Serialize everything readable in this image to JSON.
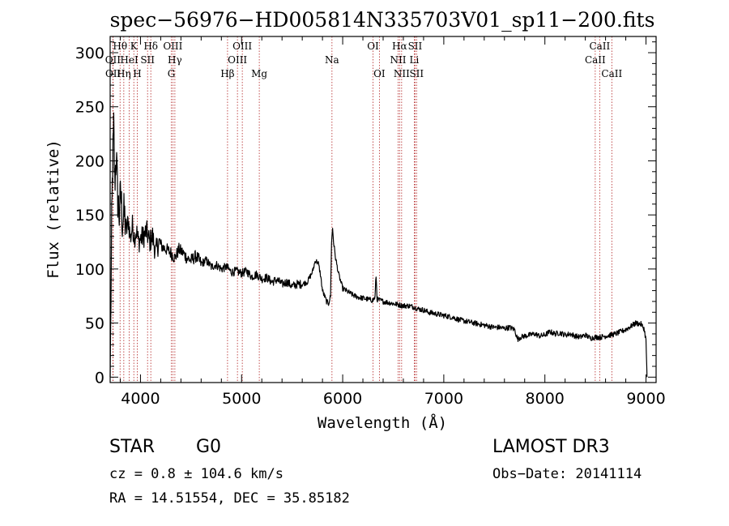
{
  "chart_data": {
    "type": "line",
    "title": "spec−56976−HD005814N335703V01_sp11−200.fits",
    "xlabel": "Wavelength (Å)",
    "ylabel": "Flux (relative)",
    "xlim": [
      3700,
      9100
    ],
    "ylim": [
      -5,
      315
    ],
    "x_ticks": [
      4000,
      5000,
      6000,
      7000,
      8000,
      9000
    ],
    "x_tick_labels": [
      "4000",
      "5000",
      "6000",
      "7000",
      "8000",
      "9000"
    ],
    "y_ticks": [
      0,
      50,
      100,
      150,
      200,
      250,
      300
    ],
    "y_tick_labels": [
      "0",
      "50",
      "100",
      "150",
      "200",
      "250",
      "300"
    ],
    "series": [
      {
        "name": "flux",
        "x": [
          3700,
          3705,
          3715,
          3725,
          3735,
          3745,
          3760,
          3775,
          3790,
          3805,
          3820,
          3840,
          3860,
          3880,
          3900,
          3920,
          3940,
          3960,
          3980,
          4000,
          4030,
          4060,
          4090,
          4120,
          4150,
          4180,
          4220,
          4260,
          4300,
          4340,
          4380,
          4420,
          4460,
          4500,
          4550,
          4600,
          4650,
          4700,
          4750,
          4800,
          4850,
          4900,
          4950,
          5000,
          5050,
          5100,
          5150,
          5200,
          5250,
          5300,
          5350,
          5400,
          5450,
          5500,
          5550,
          5600,
          5650,
          5700,
          5730,
          5760,
          5780,
          5800,
          5820,
          5840,
          5860,
          5880,
          5890,
          5900,
          5910,
          5930,
          5960,
          6000,
          6050,
          6100,
          6150,
          6200,
          6250,
          6300,
          6320,
          6330,
          6340,
          6400,
          6450,
          6500,
          6550,
          6600,
          6650,
          6700,
          6750,
          6800,
          6850,
          6900,
          6950,
          7000,
          7050,
          7100,
          7150,
          7200,
          7250,
          7300,
          7350,
          7400,
          7450,
          7500,
          7550,
          7600,
          7650,
          7700,
          7730,
          7760,
          7800,
          7850,
          7900,
          7950,
          8000,
          8050,
          8100,
          8150,
          8200,
          8250,
          8300,
          8350,
          8400,
          8450,
          8500,
          8550,
          8600,
          8650,
          8700,
          8750,
          8800,
          8850,
          8900,
          8950,
          8980,
          9000,
          9010
        ],
        "values": [
          0,
          40,
          140,
          195,
          230,
          180,
          205,
          165,
          150,
          170,
          145,
          150,
          135,
          145,
          128,
          140,
          130,
          135,
          125,
          128,
          130,
          135,
          125,
          130,
          115,
          125,
          120,
          118,
          115,
          110,
          118,
          115,
          110,
          108,
          112,
          105,
          108,
          102,
          104,
          100,
          102,
          97,
          98,
          96,
          98,
          93,
          95,
          91,
          92,
          88,
          90,
          86,
          88,
          84,
          86,
          86,
          88,
          97,
          108,
          105,
          95,
          80,
          75,
          70,
          68,
          75,
          125,
          138,
          125,
          110,
          95,
          82,
          79,
          76,
          74,
          73,
          72,
          71,
          74,
          94,
          72,
          70,
          69,
          68,
          67,
          66,
          66,
          65,
          63,
          62,
          60,
          59,
          58,
          57,
          56,
          55,
          53,
          52,
          51,
          50,
          49,
          48,
          47,
          46,
          46,
          45,
          46,
          44,
          35,
          37,
          38,
          39,
          40,
          38,
          39,
          42,
          40,
          41,
          39,
          40,
          38,
          37,
          39,
          36,
          37,
          37,
          38,
          39,
          40,
          42,
          44,
          47,
          50,
          49,
          45,
          35,
          0
        ]
      }
    ],
    "spectral_lines": [
      {
        "label": "Hθ",
        "wavelength": 3798,
        "row": 0
      },
      {
        "label": "OII",
        "wavelength": 3727,
        "row": 1
      },
      {
        "label": "OII",
        "wavelength": 3729,
        "row": 2
      },
      {
        "label": "Hη",
        "wavelength": 3835,
        "row": 2
      },
      {
        "label": "HeI",
        "wavelength": 3889,
        "row": 1
      },
      {
        "label": "K",
        "wavelength": 3934,
        "row": 0
      },
      {
        "label": "H",
        "wavelength": 3968,
        "row": 2
      },
      {
        "label": "SII",
        "wavelength": 4070,
        "row": 1
      },
      {
        "label": "Hδ",
        "wavelength": 4102,
        "row": 0
      },
      {
        "label": "OIII",
        "wavelength": 4320,
        "row": 0
      },
      {
        "label": "Hγ",
        "wavelength": 4340,
        "row": 1
      },
      {
        "label": "G",
        "wavelength": 4305,
        "row": 2
      },
      {
        "label": "Hβ",
        "wavelength": 4861,
        "row": 2
      },
      {
        "label": "OIII",
        "wavelength": 4959,
        "row": 1
      },
      {
        "label": "OIII",
        "wavelength": 5007,
        "row": 0
      },
      {
        "label": "Mg",
        "wavelength": 5175,
        "row": 2
      },
      {
        "label": "Na",
        "wavelength": 5894,
        "row": 1
      },
      {
        "label": "OI",
        "wavelength": 6300,
        "row": 0
      },
      {
        "label": "OI",
        "wavelength": 6363,
        "row": 2
      },
      {
        "label": "Hα",
        "wavelength": 6563,
        "row": 0
      },
      {
        "label": "NII",
        "wavelength": 6548,
        "row": 1
      },
      {
        "label": "NII",
        "wavelength": 6583,
        "row": 2
      },
      {
        "label": "SII",
        "wavelength": 6716,
        "row": 0
      },
      {
        "label": "Li",
        "wavelength": 6708,
        "row": 1
      },
      {
        "label": "SII",
        "wavelength": 6731,
        "row": 2
      },
      {
        "label": "CaII",
        "wavelength": 8542,
        "row": 0
      },
      {
        "label": "CaII",
        "wavelength": 8498,
        "row": 1
      },
      {
        "label": "CaII",
        "wavelength": 8662,
        "row": 2
      }
    ]
  },
  "info": {
    "object_class": "STAR",
    "subclass": "G0",
    "survey": "LAMOST DR3",
    "redshift": "cz = 0.8 ± 104.6 km/s",
    "obs_date": "Obs−Date: 20141114",
    "coords": "RA =  14.51554, DEC =  35.85182"
  },
  "colors": {
    "line_marker": "#b22222",
    "spectrum": "#000000"
  }
}
